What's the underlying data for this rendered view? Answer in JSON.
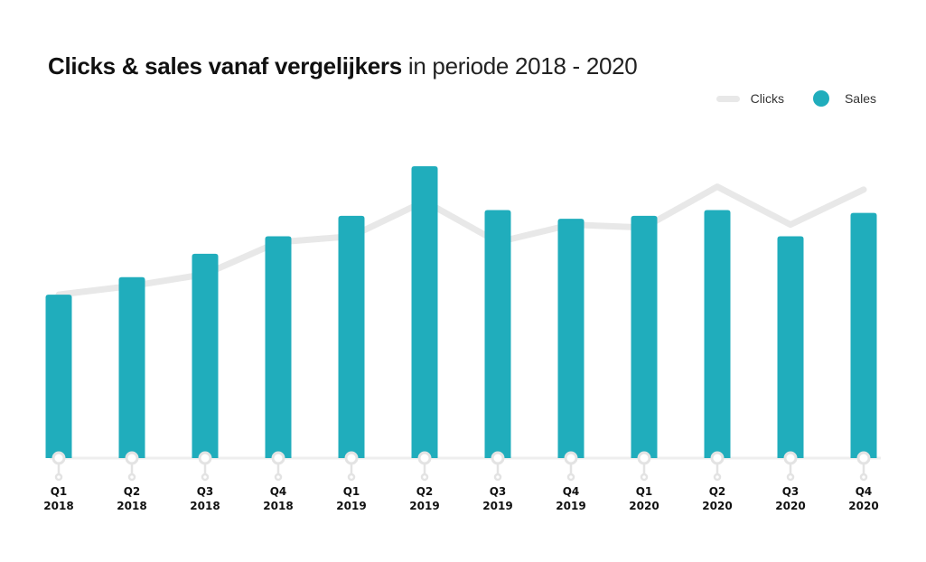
{
  "chart_data": {
    "type": "bar",
    "title_bold": "Clicks & sales vanaf vergelijkers",
    "title_light": "in periode 2018 - 2020",
    "xlabel": "",
    "ylabel": "",
    "ylim": [
      0,
      110
    ],
    "grid": false,
    "legend": {
      "placement": "top-right",
      "entries": [
        "Clicks",
        "Sales"
      ]
    },
    "categories": [
      {
        "q": "Q1",
        "y": "2018"
      },
      {
        "q": "Q2",
        "y": "2018"
      },
      {
        "q": "Q3",
        "y": "2018"
      },
      {
        "q": "Q4",
        "y": "2018"
      },
      {
        "q": "Q1",
        "y": "2019"
      },
      {
        "q": "Q2",
        "y": "2019"
      },
      {
        "q": "Q3",
        "y": "2019"
      },
      {
        "q": "Q4",
        "y": "2019"
      },
      {
        "q": "Q1",
        "y": "2020"
      },
      {
        "q": "Q2",
        "y": "2020"
      },
      {
        "q": "Q3",
        "y": "2020"
      },
      {
        "q": "Q4",
        "y": "2020"
      }
    ],
    "series": [
      {
        "name": "Sales",
        "type": "bar",
        "color": "#20adbc",
        "values": [
          56,
          62,
          70,
          76,
          83,
          100,
          85,
          82,
          83,
          85,
          76,
          84
        ]
      },
      {
        "name": "Clicks",
        "type": "line",
        "color": "#e8e8e8",
        "values": [
          56,
          59,
          63,
          74,
          76,
          88,
          74,
          80,
          79,
          93,
          80,
          92
        ]
      }
    ]
  }
}
